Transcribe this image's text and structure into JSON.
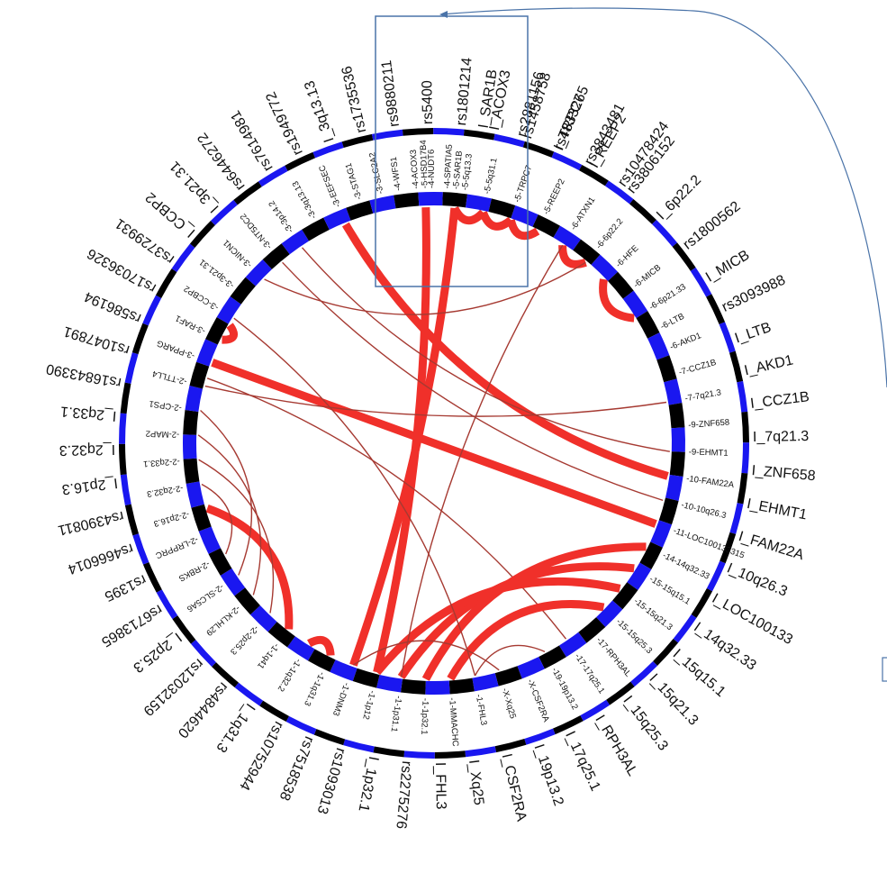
{
  "colors": {
    "ring_dark": "#000000",
    "ring_blue": "#1a17f0",
    "link_strong": "#f0302a",
    "link_weak": "#a63a32",
    "box_frame": "#4a73a8",
    "text": "#111111"
  },
  "outer_labels": [
    {
      "text": "I_SAR1B",
      "angle": 9
    },
    {
      "text": "rs2881156",
      "angle": 16
    },
    {
      "text": "I_TRPC7",
      "angle": 23
    },
    {
      "text": "I_REEP2",
      "angle": 30
    },
    {
      "text": "rs3806152",
      "angle": 38
    },
    {
      "text": "I_6p22.2",
      "angle": 45
    },
    {
      "text": "rs1800562",
      "angle": 52
    },
    {
      "text": "I_MICB",
      "angle": 59
    },
    {
      "text": "rs3093988",
      "angle": 65
    },
    {
      "text": "I_LTB",
      "angle": 71
    },
    {
      "text": "I_AKD1",
      "angle": 77
    },
    {
      "text": "I_CCZ1B",
      "angle": 83
    },
    {
      "text": "I_7q21.3",
      "angle": 89
    },
    {
      "text": "I_ZNF658",
      "angle": 95
    },
    {
      "text": "I_EHMT1",
      "angle": 101
    },
    {
      "text": "I_FAM22A",
      "angle": 107
    },
    {
      "text": "I_10q26.3",
      "angle": 113
    },
    {
      "text": "I_LOC100133",
      "angle": 119
    },
    {
      "text": "I_14q32.33",
      "angle": 125
    },
    {
      "text": "I_15q15.1",
      "angle": 131
    },
    {
      "text": "I_15q21.3",
      "angle": 137
    },
    {
      "text": "I_15q25.3",
      "angle": 143
    },
    {
      "text": "I_RPH3AL",
      "angle": 149
    },
    {
      "text": "I_17q25.1",
      "angle": 155
    },
    {
      "text": "I_19p13.2",
      "angle": 161
    },
    {
      "text": "I_CSF2RA",
      "angle": 167
    },
    {
      "text": "I_Xq25",
      "angle": 173
    },
    {
      "text": "I_FHL3",
      "angle": 179
    },
    {
      "text": "rs2275276",
      "angle": 185
    },
    {
      "text": "I_1p32.1",
      "angle": 191
    },
    {
      "text": "rs1093013",
      "angle": 197
    },
    {
      "text": "rs7518538",
      "angle": 203
    },
    {
      "text": "rs10752944",
      "angle": 209
    },
    {
      "text": "I_1q31.3",
      "angle": 215
    },
    {
      "text": "rs4844620",
      "angle": 221
    },
    {
      "text": "rs12032159",
      "angle": 227
    },
    {
      "text": "I_2p25.3",
      "angle": 233
    },
    {
      "text": "rs6713865",
      "angle": 239
    },
    {
      "text": "rs1395",
      "angle": 245
    },
    {
      "text": "rs4666014",
      "angle": 251
    },
    {
      "text": "rs4390811",
      "angle": 257
    },
    {
      "text": "I_2p16.3",
      "angle": 263
    },
    {
      "text": "I_2q32.3",
      "angle": 269
    },
    {
      "text": "I_2q33.1",
      "angle": 275
    },
    {
      "text": "rs16843390",
      "angle": 281
    },
    {
      "text": "rs1047891",
      "angle": 287
    },
    {
      "text": "rs586194",
      "angle": 293
    },
    {
      "text": "rs17036326",
      "angle": 299
    },
    {
      "text": "rs3729931",
      "angle": 305
    },
    {
      "text": "I_CCBP2",
      "angle": 311
    },
    {
      "text": "I_3p21.31",
      "angle": 317
    },
    {
      "text": "rs6446272",
      "angle": 323
    },
    {
      "text": "rs7614981",
      "angle": 329
    },
    {
      "text": "rs1949772",
      "angle": 335
    },
    {
      "text": "I_3q13.13",
      "angle": 341
    },
    {
      "text": "rs1735536",
      "angle": 347
    },
    {
      "text": "rs9880211",
      "angle": 353
    },
    {
      "text": "rs5400",
      "angle": 359
    },
    {
      "text": "rs1801214",
      "angle": 365
    },
    {
      "text": "I_ACOX3",
      "angle": 371
    },
    {
      "text": "rs1458758",
      "angle": 377
    },
    {
      "text": "rs4833265",
      "angle": 383
    },
    {
      "text": "rs3843481",
      "angle": 389
    },
    {
      "text": "rs10478424",
      "angle": 396
    }
  ],
  "inner_labels": [
    {
      "text": "-5-HSD17B4",
      "angle": 358
    },
    {
      "text": "-5-SAR1B",
      "angle": 5
    },
    {
      "text": "-5-5q31.1",
      "angle": 12
    },
    {
      "text": "-5-TRPC7",
      "angle": 19
    },
    {
      "text": "-5-REEP2",
      "angle": 26
    },
    {
      "text": "-6-ATXN1",
      "angle": 33
    },
    {
      "text": "-6-6p22.2",
      "angle": 40
    },
    {
      "text": "-6-HFE",
      "angle": 46
    },
    {
      "text": "-6-MICB",
      "angle": 52
    },
    {
      "text": "-6-6p21.33",
      "angle": 58
    },
    {
      "text": "-6-LTB",
      "angle": 63
    },
    {
      "text": "-6-AKD1",
      "angle": 68
    },
    {
      "text": "-7-CCZ1B",
      "angle": 74
    },
    {
      "text": "-7-7q21.3",
      "angle": 80
    },
    {
      "text": "-9-ZNF658",
      "angle": 86
    },
    {
      "text": "-9-EHMT1",
      "angle": 92
    },
    {
      "text": "-10-FAM22A",
      "angle": 98
    },
    {
      "text": "-10-10q26.3",
      "angle": 104
    },
    {
      "text": "-11-LOC100133315",
      "angle": 110
    },
    {
      "text": "-14-14q32.33",
      "angle": 116
    },
    {
      "text": "-15-15q15.1",
      "angle": 122
    },
    {
      "text": "-15-15q21.3",
      "angle": 128
    },
    {
      "text": "-15-15q25.3",
      "angle": 134
    },
    {
      "text": "-17-RPH3AL",
      "angle": 140
    },
    {
      "text": "-17-17q25.1",
      "angle": 146
    },
    {
      "text": "-19-19p13.2",
      "angle": 152
    },
    {
      "text": "-X-CSF2RA",
      "angle": 158
    },
    {
      "text": "-X-Xq25",
      "angle": 164
    },
    {
      "text": "-1-FHL3",
      "angle": 170
    },
    {
      "text": "-1-MMACHC",
      "angle": 176
    },
    {
      "text": "-1-1p32.1",
      "angle": 182
    },
    {
      "text": "-1-1p31.1",
      "angle": 188
    },
    {
      "text": "-1-1p12",
      "angle": 194
    },
    {
      "text": "-1-DNM3",
      "angle": 200
    },
    {
      "text": "-1-1q31.3",
      "angle": 206
    },
    {
      "text": "-1-1q32.2",
      "angle": 212
    },
    {
      "text": "-1-1q41",
      "angle": 218
    },
    {
      "text": "-2-2p25.3",
      "angle": 224
    },
    {
      "text": "-2-KLHL29",
      "angle": 230
    },
    {
      "text": "-2-SLC5A6",
      "angle": 236
    },
    {
      "text": "-2-RBKS",
      "angle": 242
    },
    {
      "text": "-2-LRPPRC",
      "angle": 248
    },
    {
      "text": "-2-2p16.3",
      "angle": 254
    },
    {
      "text": "-2-2q32.3",
      "angle": 260
    },
    {
      "text": "-2-2q33.1",
      "angle": 266
    },
    {
      "text": "-2-MAP2",
      "angle": 272
    },
    {
      "text": "-2-CPS1",
      "angle": 278
    },
    {
      "text": "-2-TTLL4",
      "angle": 284
    },
    {
      "text": "-3-PPARG",
      "angle": 290
    },
    {
      "text": "-3-RAF1",
      "angle": 296
    },
    {
      "text": "-3-CCBP2",
      "angle": 302
    },
    {
      "text": "-3-3p21.31",
      "angle": 308
    },
    {
      "text": "-3-NICN1",
      "angle": 314
    },
    {
      "text": "-3-NT5DC2",
      "angle": 320
    },
    {
      "text": "-3-3p14.2",
      "angle": 326
    },
    {
      "text": "-3-3q13.13",
      "angle": 332
    },
    {
      "text": "-3-EEFSEC",
      "angle": 338
    },
    {
      "text": "-3-STAG1",
      "angle": 343
    },
    {
      "text": "-3-SLC2A2",
      "angle": 348
    },
    {
      "text": "-4-WFS1",
      "angle": 352
    },
    {
      "text": "-4-ACOX3",
      "angle": 356
    },
    {
      "text": "-4-NUDT6",
      "angle": 359.5
    },
    {
      "text": "-4-SPATIA5",
      "angle": 363
    },
    {
      "text": "-5-5q13.3",
      "angle": 367
    }
  ],
  "links": [
    {
      "a": 5,
      "b": 12,
      "weight": "strong"
    },
    {
      "a": 12,
      "b": 19,
      "weight": "strong"
    },
    {
      "a": 19,
      "b": 26,
      "weight": "strong"
    },
    {
      "a": 33,
      "b": 40,
      "weight": "strong"
    },
    {
      "a": 46,
      "b": 58,
      "weight": "strong"
    },
    {
      "a": 296,
      "b": 300,
      "weight": "strong"
    },
    {
      "a": 290,
      "b": 110,
      "weight": "strong"
    },
    {
      "a": 5,
      "b": 200,
      "weight": "strong"
    },
    {
      "a": 358,
      "b": 194,
      "weight": "strong"
    },
    {
      "a": 338,
      "b": 98,
      "weight": "strong"
    },
    {
      "a": 326,
      "b": 92,
      "weight": "weak"
    },
    {
      "a": 286,
      "b": 146,
      "weight": "weak"
    },
    {
      "a": 206,
      "b": 212,
      "weight": "strong"
    },
    {
      "a": 218,
      "b": 254,
      "weight": "strong"
    },
    {
      "a": 182,
      "b": 116,
      "weight": "strong"
    },
    {
      "a": 188,
      "b": 122,
      "weight": "strong"
    },
    {
      "a": 194,
      "b": 128,
      "weight": "strong"
    },
    {
      "a": 176,
      "b": 134,
      "weight": "strong"
    },
    {
      "a": 170,
      "b": 152,
      "weight": "weak"
    },
    {
      "a": 164,
      "b": 200,
      "weight": "weak"
    },
    {
      "a": 266,
      "b": 224,
      "weight": "weak"
    },
    {
      "a": 272,
      "b": 230,
      "weight": "weak"
    },
    {
      "a": 278,
      "b": 236,
      "weight": "weak"
    },
    {
      "a": 260,
      "b": 242,
      "weight": "weak"
    },
    {
      "a": 314,
      "b": 40,
      "weight": "weak"
    },
    {
      "a": 320,
      "b": 104,
      "weight": "weak"
    },
    {
      "a": 33,
      "b": 188,
      "weight": "weak"
    },
    {
      "a": 302,
      "b": 170,
      "weight": "weak"
    },
    {
      "a": 284,
      "b": 80,
      "weight": "weak"
    }
  ]
}
